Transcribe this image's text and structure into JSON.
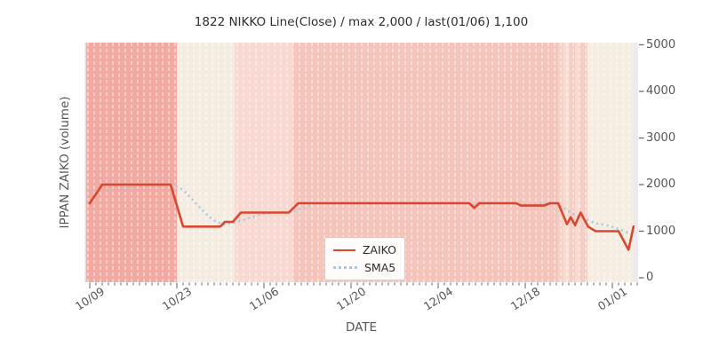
{
  "chart_data": {
    "type": "line",
    "title": "1822 NIKKO Line(Close) / max 2,000 / last(01/06) 1,100",
    "xlabel": "DATE",
    "ylabel": "IPPAN ZAIKO (volume)",
    "ylim": [
      0,
      5000
    ],
    "yticks": [
      0,
      1000,
      2000,
      3000,
      4000,
      5000
    ],
    "x_start_date": "10/09",
    "xticks": [
      {
        "day": 0,
        "label": "10/09"
      },
      {
        "day": 14,
        "label": "10/23"
      },
      {
        "day": 28,
        "label": "11/06"
      },
      {
        "day": 42,
        "label": "11/20"
      },
      {
        "day": 56,
        "label": "12/04"
      },
      {
        "day": 70,
        "label": "12/18"
      },
      {
        "day": 84,
        "label": "01/01"
      }
    ],
    "grid": "vertical-dashed-daily",
    "legend": {
      "position": "lower-center-inside",
      "entries": [
        {
          "name": "ZAIKO",
          "color": "#d8472f",
          "style": "solid"
        },
        {
          "name": "SMA5",
          "color": "#a5c8e1",
          "style": "dotted"
        }
      ]
    },
    "series": [
      {
        "name": "ZAIKO",
        "color": "#d8472f",
        "style": "solid",
        "points": [
          [
            0,
            1600
          ],
          [
            2,
            2000
          ],
          [
            13,
            2000
          ],
          [
            15,
            1100
          ],
          [
            21,
            1100
          ],
          [
            21.7,
            1200
          ],
          [
            23,
            1200
          ],
          [
            24.3,
            1400
          ],
          [
            32,
            1400
          ],
          [
            33.5,
            1600
          ],
          [
            61,
            1600
          ],
          [
            61.8,
            1500
          ],
          [
            62.6,
            1600
          ],
          [
            68.5,
            1600
          ],
          [
            69.3,
            1550
          ],
          [
            73,
            1550
          ],
          [
            74,
            1600
          ],
          [
            75.3,
            1600
          ],
          [
            76.7,
            1150
          ],
          [
            77.3,
            1300
          ],
          [
            78,
            1130
          ],
          [
            78.9,
            1400
          ],
          [
            80.1,
            1100
          ],
          [
            81.3,
            1000
          ],
          [
            85,
            1000
          ],
          [
            86.6,
            600
          ],
          [
            87.4,
            1100
          ]
        ]
      },
      {
        "name": "SMA5",
        "color": "#a5c8e1",
        "style": "dotted",
        "points": [
          [
            5,
            2000
          ],
          [
            6.3,
            1930
          ],
          [
            7.5,
            2000
          ],
          [
            13.5,
            1990
          ],
          [
            15,
            1890
          ],
          [
            16,
            1750
          ],
          [
            17,
            1610
          ],
          [
            18,
            1470
          ],
          [
            19,
            1330
          ],
          [
            20,
            1230
          ],
          [
            21.5,
            1140
          ],
          [
            23,
            1180
          ],
          [
            24.5,
            1230
          ],
          [
            26,
            1300
          ],
          [
            27.5,
            1360
          ],
          [
            29,
            1400
          ],
          [
            31.5,
            1410
          ],
          [
            33,
            1440
          ],
          [
            34,
            1480
          ],
          [
            35,
            1540
          ],
          [
            36.5,
            1600
          ],
          [
            59.5,
            1600
          ],
          [
            61.5,
            1575
          ],
          [
            63,
            1565
          ],
          [
            64.5,
            1590
          ],
          [
            68,
            1600
          ],
          [
            69.5,
            1580
          ],
          [
            71,
            1560
          ],
          [
            72.3,
            1580
          ],
          [
            73.8,
            1620
          ],
          [
            75.3,
            1560
          ],
          [
            76.3,
            1490
          ],
          [
            77.3,
            1400
          ],
          [
            78.3,
            1330
          ],
          [
            79.8,
            1250
          ],
          [
            81.3,
            1170
          ],
          [
            82.8,
            1140
          ],
          [
            84.3,
            1080
          ],
          [
            85.8,
            1010
          ],
          [
            87.2,
            930
          ]
        ]
      }
    ],
    "background_bands": [
      {
        "d0": -0.6,
        "d1": 14,
        "color": "#f2a9a1"
      },
      {
        "d0": 14,
        "d1": 23.3,
        "color": "#f4ebe1"
      },
      {
        "d0": 23.3,
        "d1": 32.7,
        "color": "#f8d8d1"
      },
      {
        "d0": 32.7,
        "d1": 75.3,
        "color": "#f5c4bb"
      },
      {
        "d0": 75.3,
        "d1": 76.1,
        "color": "#f7cfc4"
      },
      {
        "d0": 76.1,
        "d1": 77.1,
        "color": "#f6dcd1"
      },
      {
        "d0": 77.1,
        "d1": 78,
        "color": "#f5cdc2"
      },
      {
        "d0": 78,
        "d1": 78.7,
        "color": "#f7dbd0"
      },
      {
        "d0": 78.7,
        "d1": 80,
        "color": "#f4cfc7"
      },
      {
        "d0": 80,
        "d1": 87.4,
        "color": "#f5ece2"
      }
    ],
    "colors": {
      "plot_background": "#eaeaf0",
      "grid_line": "#ffffff",
      "tick": "#606060",
      "title_text": "#2d2d2d",
      "axis_text": "#555555"
    }
  }
}
